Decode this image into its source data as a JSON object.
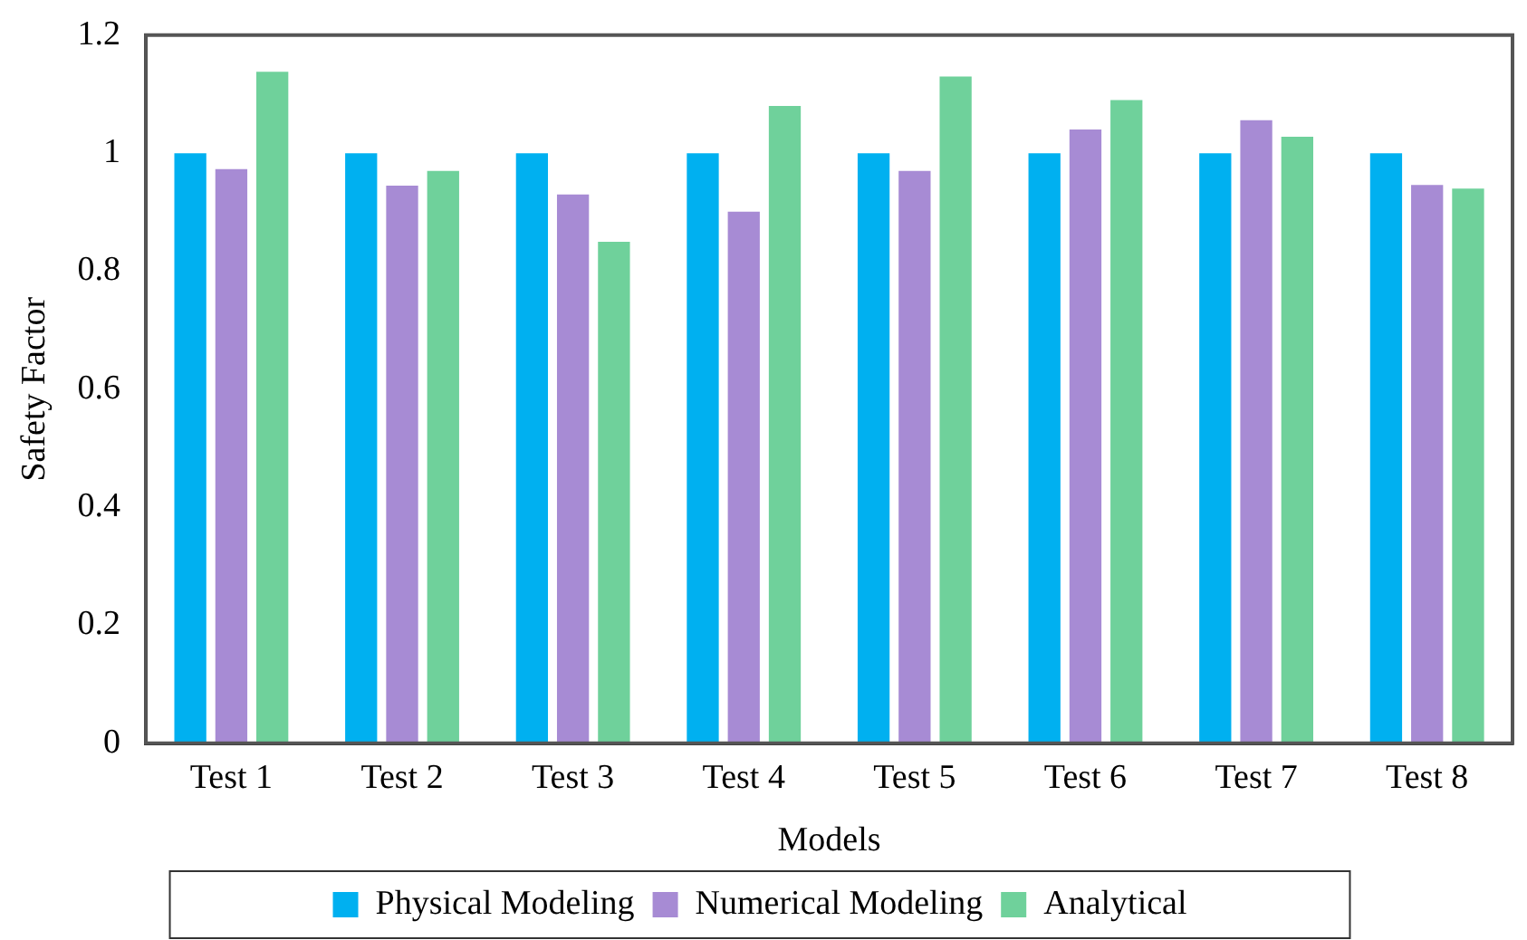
{
  "chart_data": {
    "type": "bar",
    "xlabel": "Models",
    "ylabel": "Safety Factor",
    "categories": [
      "Test 1",
      "Test 2",
      "Test 3",
      "Test 4",
      "Test 5",
      "Test 6",
      "Test 7",
      "Test 8"
    ],
    "series": [
      {
        "name": "Physical Modeling",
        "color": "#00b0f0",
        "values": [
          1,
          1,
          1,
          1,
          1,
          1,
          1,
          1
        ]
      },
      {
        "name": "Numerical Modeling",
        "color": "#a78bd4",
        "values": [
          0.973,
          0.945,
          0.93,
          0.901,
          0.97,
          1.04,
          1.056,
          0.946
        ]
      },
      {
        "name": "Analytical",
        "color": "#6fd19b",
        "values": [
          1.138,
          0.97,
          0.85,
          1.08,
          1.13,
          1.09,
          1.028,
          0.94
        ]
      }
    ],
    "ylim": [
      0,
      1.2
    ],
    "yticks": [
      0,
      0.2,
      0.4,
      0.6,
      0.8,
      1,
      1.2
    ],
    "grid": false,
    "legend": "bottom"
  }
}
